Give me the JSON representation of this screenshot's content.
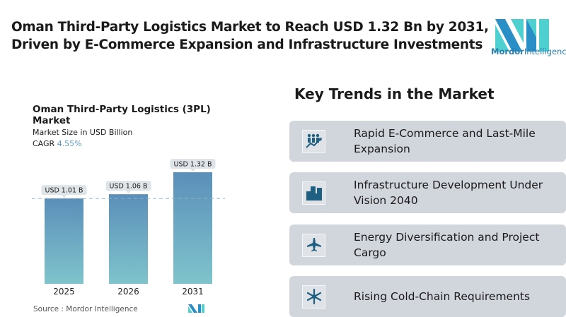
{
  "header": {
    "title_line1": "Oman Third-Party Logistics Market to Reach USD 1.32 Bn by 2031,",
    "title_line2": "Driven by E-Commerce Expansion and Infrastructure Investments"
  },
  "logo": {
    "word1": "Mordor",
    "word2": "Intelligence",
    "colors": [
      "#2a8fc6",
      "#4fd0d0"
    ]
  },
  "chart_data": {
    "type": "bar",
    "title": "Oman Third-Party Logistics (3PL) Market",
    "subtitle": "Market Size in USD Billion",
    "cagr_label": "CAGR",
    "cagr_value": "4.55%",
    "categories": [
      "2025",
      "2026",
      "2031"
    ],
    "values": [
      1.01,
      1.06,
      1.32
    ],
    "data_labels": [
      "USD 1.01 B",
      "USD 1.06 B",
      "USD 1.32 B"
    ],
    "ylim": [
      0,
      1.32
    ],
    "reference_line": 1.01,
    "grid": false,
    "bar_gradient": [
      "#5b8fb9",
      "#7fc4cc"
    ]
  },
  "source": "Source :  Mordor Intelligence",
  "trends": {
    "title": "Key Trends in the Market",
    "items": [
      {
        "line1": "Rapid E-Commerce and Last-Mile",
        "line2": "Expansion",
        "icon": "growth-people-icon"
      },
      {
        "line1": "Infrastructure Development Under",
        "line2": "Vision 2040",
        "icon": "buildings-icon"
      },
      {
        "line1": "Energy Diversification and Project",
        "line2": "Cargo",
        "icon": "airplane-icon"
      },
      {
        "line1": "Rising Cold-Chain Requirements",
        "line2": "",
        "icon": "snowflake-icon"
      }
    ],
    "icon_color": "#1f5f82"
  }
}
